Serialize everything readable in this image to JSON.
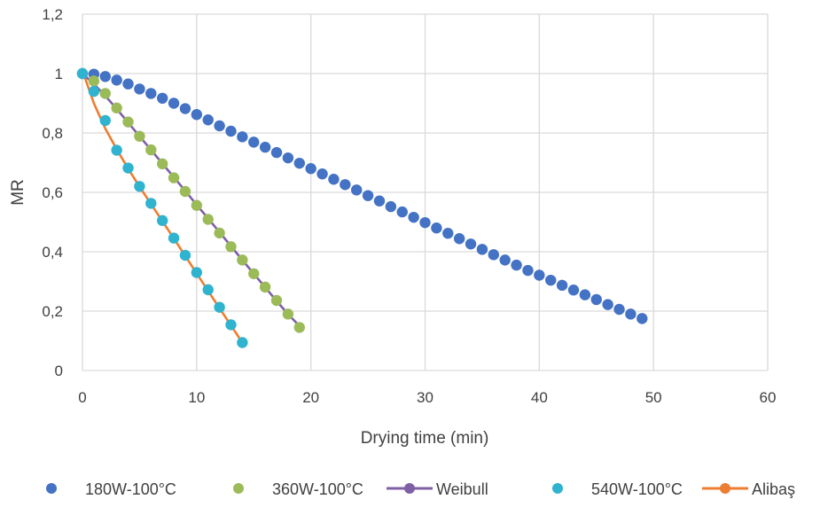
{
  "chart_data": {
    "type": "scatter",
    "xlabel": "Drying time (min)",
    "ylabel": "MR",
    "xlim": [
      0,
      60
    ],
    "ylim": [
      0,
      1.2
    ],
    "xticks": [
      0,
      10,
      20,
      30,
      40,
      50,
      60
    ],
    "yticks": [
      0,
      0.2,
      0.4,
      0.6,
      0.8,
      1,
      1.2
    ],
    "xtick_labels": [
      "0",
      "10",
      "20",
      "30",
      "40",
      "50",
      "60"
    ],
    "ytick_labels": [
      "0",
      "0,2",
      "0,4",
      "0,6",
      "0,8",
      "1",
      "1,2"
    ],
    "grid": true,
    "legend_position": "bottom",
    "series": [
      {
        "name": "180W-100°C",
        "kind": "markers",
        "color": "#4472C4",
        "x": [
          0,
          1,
          2,
          3,
          4,
          5,
          6,
          7,
          8,
          9,
          10,
          11,
          12,
          13,
          14,
          15,
          16,
          17,
          18,
          19,
          20,
          21,
          22,
          23,
          24,
          25,
          26,
          27,
          28,
          29,
          30,
          31,
          32,
          33,
          34,
          35,
          36,
          37,
          38,
          39,
          40,
          41,
          42,
          43,
          44,
          45,
          46,
          47,
          48,
          49
        ],
        "y": [
          1.0,
          0.998,
          0.99,
          0.978,
          0.965,
          0.948,
          0.933,
          0.917,
          0.9,
          0.882,
          0.862,
          0.844,
          0.824,
          0.806,
          0.787,
          0.769,
          0.752,
          0.734,
          0.716,
          0.698,
          0.68,
          0.662,
          0.644,
          0.626,
          0.608,
          0.589,
          0.571,
          0.552,
          0.534,
          0.516,
          0.498,
          0.48,
          0.462,
          0.444,
          0.426,
          0.408,
          0.39,
          0.372,
          0.355,
          0.337,
          0.321,
          0.304,
          0.287,
          0.271,
          0.255,
          0.239,
          0.222,
          0.206,
          0.19,
          0.175
        ]
      },
      {
        "name": "360W-100°C",
        "kind": "markers",
        "color": "#9BBB59",
        "x": [
          0,
          1,
          2,
          3,
          4,
          5,
          6,
          7,
          8,
          9,
          10,
          11,
          12,
          13,
          14,
          15,
          16,
          17,
          18,
          19
        ],
        "y": [
          1.0,
          0.975,
          0.933,
          0.884,
          0.837,
          0.789,
          0.743,
          0.696,
          0.649,
          0.603,
          0.556,
          0.509,
          0.463,
          0.417,
          0.372,
          0.326,
          0.281,
          0.236,
          0.19,
          0.145
        ]
      },
      {
        "name": "Weibull",
        "kind": "line",
        "color": "#7F5FA6",
        "x": [
          0,
          1,
          2,
          3,
          4,
          5,
          6,
          7,
          8,
          9,
          10,
          11,
          12,
          13,
          14,
          15,
          16,
          17,
          18,
          19
        ],
        "y": [
          1.0,
          0.965,
          0.925,
          0.881,
          0.835,
          0.789,
          0.743,
          0.697,
          0.651,
          0.605,
          0.558,
          0.512,
          0.466,
          0.419,
          0.372,
          0.326,
          0.28,
          0.234,
          0.19,
          0.15
        ]
      },
      {
        "name": "540W-100°C",
        "kind": "markers",
        "color": "#2FB3CF",
        "x": [
          0,
          1,
          2,
          3,
          4,
          5,
          6,
          7,
          8,
          9,
          10,
          11,
          12,
          13,
          14
        ],
        "y": [
          1.0,
          0.94,
          0.842,
          0.742,
          0.682,
          0.62,
          0.563,
          0.505,
          0.446,
          0.388,
          0.33,
          0.272,
          0.213,
          0.154,
          0.094
        ]
      },
      {
        "name": "Alibaş",
        "kind": "line",
        "color": "#ED7D31",
        "x": [
          0,
          1,
          2,
          3,
          4,
          5,
          6,
          7,
          8,
          9,
          10,
          11,
          12,
          13,
          14
        ],
        "y": [
          1.01,
          0.9,
          0.815,
          0.745,
          0.68,
          0.619,
          0.561,
          0.503,
          0.445,
          0.386,
          0.327,
          0.268,
          0.21,
          0.152,
          0.094
        ]
      }
    ],
    "legend_order": [
      "180W-100°C",
      "360W-100°C",
      "Weibull",
      "540W-100°C",
      "Alibaş"
    ]
  }
}
